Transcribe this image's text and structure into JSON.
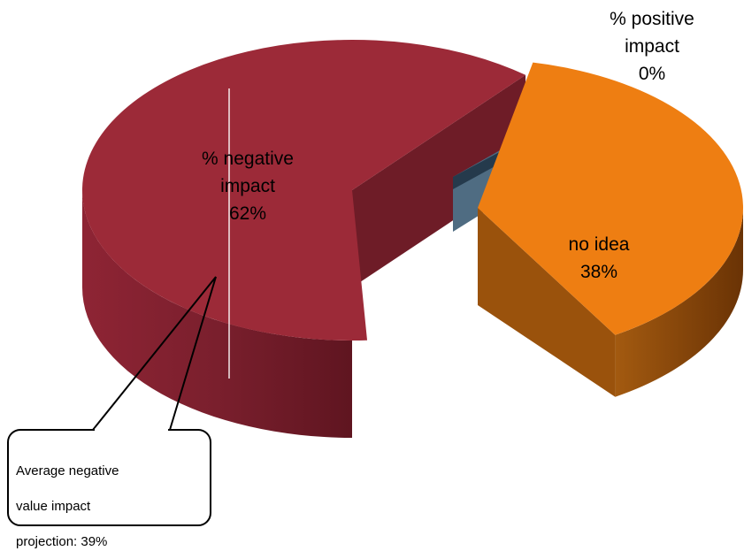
{
  "chart_data": {
    "type": "pie",
    "three_d": true,
    "exploded": true,
    "slices": [
      {
        "name": "% negative impact",
        "label_lines": [
          "% negative",
          "impact",
          "62%"
        ],
        "value": 62,
        "color": "#9C2A38",
        "side_color": "#6E1C27"
      },
      {
        "name": "% positive impact",
        "label_lines": [
          "% positive",
          "impact",
          "0%"
        ],
        "value": 0,
        "color": "#4F6C82",
        "side_color": "#253A4C"
      },
      {
        "name": "no idea",
        "label_lines": [
          "no idea",
          "38%"
        ],
        "value": 38,
        "color": "#EE7E12",
        "side_color": "#7A3E06"
      }
    ],
    "annotation": {
      "text": "Average negative value impact projection: 39%",
      "lines": [
        "Average negative",
        "value impact",
        "projection: 39%"
      ],
      "target": "% negative impact"
    },
    "legend": "none"
  }
}
